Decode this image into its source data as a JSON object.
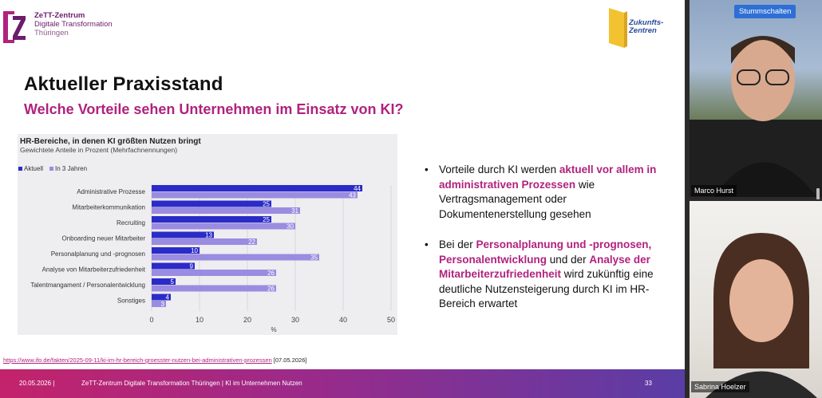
{
  "brand": {
    "line1": "ZeTT-Zentrum",
    "line2": "Digitale Transformation",
    "line3": "Thüringen",
    "partner_line1": "Zukunfts-",
    "partner_line2": "Zentren"
  },
  "slide": {
    "title": "Aktueller Praxisstand",
    "subtitle": "Welche Vorteile sehen Unternehmen im Einsatz von KI?",
    "bullets": [
      {
        "before": "Vorteile durch KI werden ",
        "highlight": "aktuell vor allem in administrativen Prozessen",
        "after": " wie Vertragsmanagement oder Dokumentenerstellung gesehen"
      },
      {
        "before": "Bei der ",
        "highlight": "Personalplanung und -prognosen, Personalentwicklung",
        "mid": " und der ",
        "highlight2": "Analyse der Mitarbeiterzufriedenheit",
        "after": " wird zukünftig eine deutliche Nutzensteigerung durch KI im HR-Bereich erwartet"
      }
    ],
    "source_link": "https://www.ifo.de/fakten/2025-09-11/ki-im-hr-bereich-groesster-nutzen-bei-administrativen-prozessen",
    "source_date": "[07.05.2026]",
    "footer_date": "20.05.2026  |",
    "footer_text": "ZeTT-Zentrum Digitale Transformation Thüringen | KI im Unternehmen Nutzen",
    "page_number": "33"
  },
  "colors": {
    "accent": "#b0227e",
    "series_current": "#2b2bc8",
    "series_future": "#9a8ce0"
  },
  "chart_data": {
    "type": "bar",
    "orientation": "horizontal",
    "title": "HR-Bereiche, in denen KI größten Nutzen bringt",
    "subtitle": "Gewichtete Anteile in Prozent (Mehrfachnennungen)",
    "categories": [
      "Administrative Prozesse",
      "Mitarbeiterkommunikation",
      "Recruiting",
      "Onboarding neuer Mitarbeiter",
      "Personalplanung und -prognosen",
      "Analyse von Mitarbeiterzufriedenheit",
      "Talentmangament / Personalentwicklung",
      "Sonstiges"
    ],
    "series": [
      {
        "name": "Aktuell",
        "values": [
          44,
          25,
          25,
          13,
          10,
          9,
          5,
          4
        ]
      },
      {
        "name": "In 3 Jahren",
        "values": [
          43,
          31,
          30,
          22,
          35,
          26,
          26,
          3
        ]
      }
    ],
    "xlabel": "%",
    "xlim": [
      0,
      50
    ],
    "xticks": [
      "0",
      "10",
      "20",
      "30",
      "40",
      "50"
    ],
    "grid": true,
    "legend": "top-left"
  },
  "participants": [
    {
      "name": "Marco Hurst"
    },
    {
      "name": "Sabrina Hoelzer"
    }
  ],
  "controls": {
    "mute_label": "Stummschalten"
  }
}
